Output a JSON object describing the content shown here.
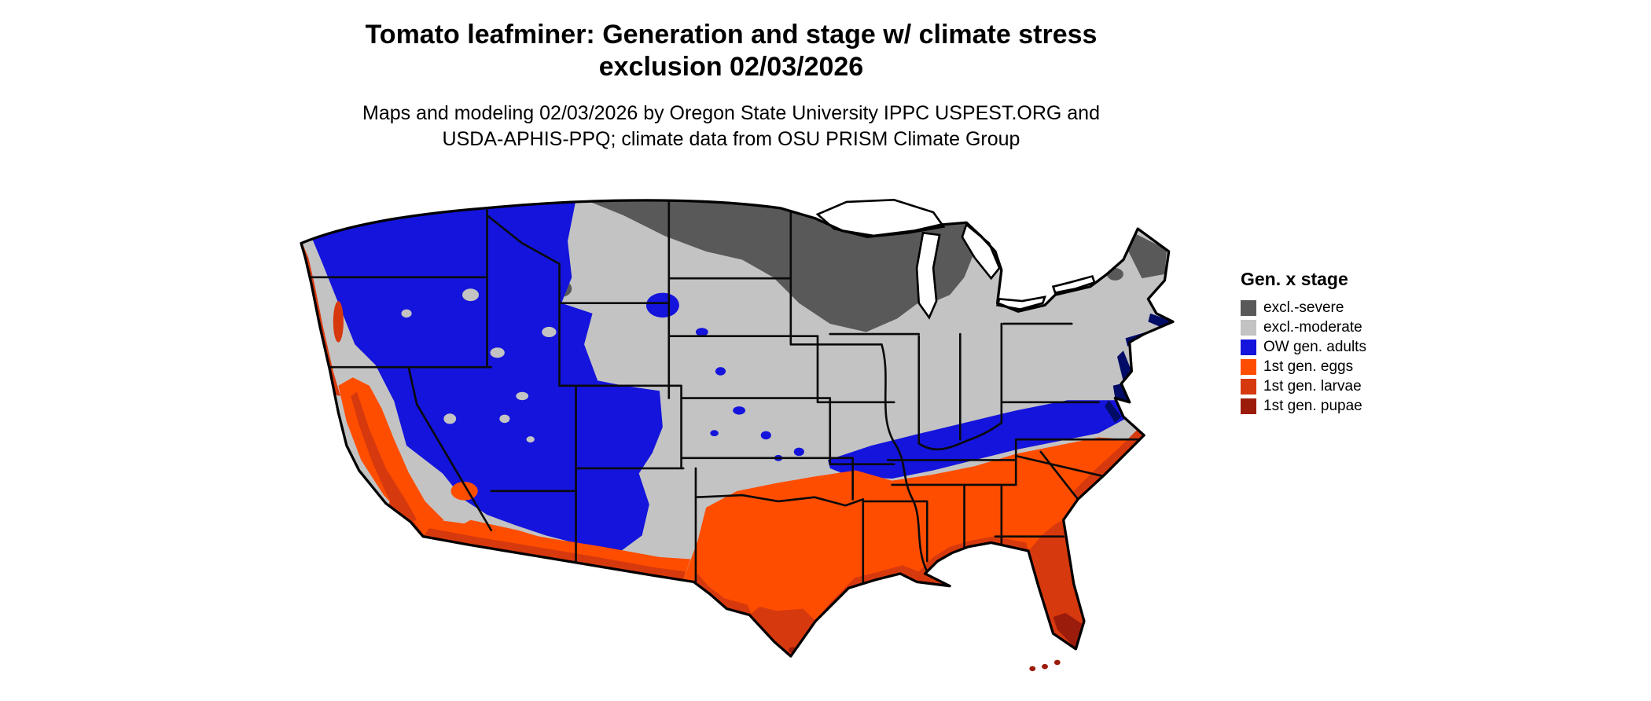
{
  "title": {
    "line1": "Tomato leafminer: Generation and stage w/ climate stress",
    "line2": "exclusion 02/03/2026"
  },
  "subtitle": {
    "line1": "Maps and modeling 02/03/2026 by Oregon State University IPPC USPEST.ORG and",
    "line2": "USDA-APHIS-PPQ; climate data from OSU PRISM Climate Group"
  },
  "legend": {
    "title": "Gen. x stage",
    "items": [
      {
        "label": "excl.-severe",
        "color": "#595959"
      },
      {
        "label": "excl.-moderate",
        "color": "#C3C3C3"
      },
      {
        "label": "OW gen. adults",
        "color": "#1414DC"
      },
      {
        "label": "1st gen. eggs",
        "color": "#FF4D00"
      },
      {
        "label": "1st gen. larvae",
        "color": "#D7390E"
      },
      {
        "label": "1st gen. pupae",
        "color": "#9C1C0C"
      }
    ]
  },
  "map": {
    "region": "Continental United States",
    "water_color": "#FFFFFF",
    "border_color": "#000000",
    "coastal_overlay_color": "#000C66"
  }
}
